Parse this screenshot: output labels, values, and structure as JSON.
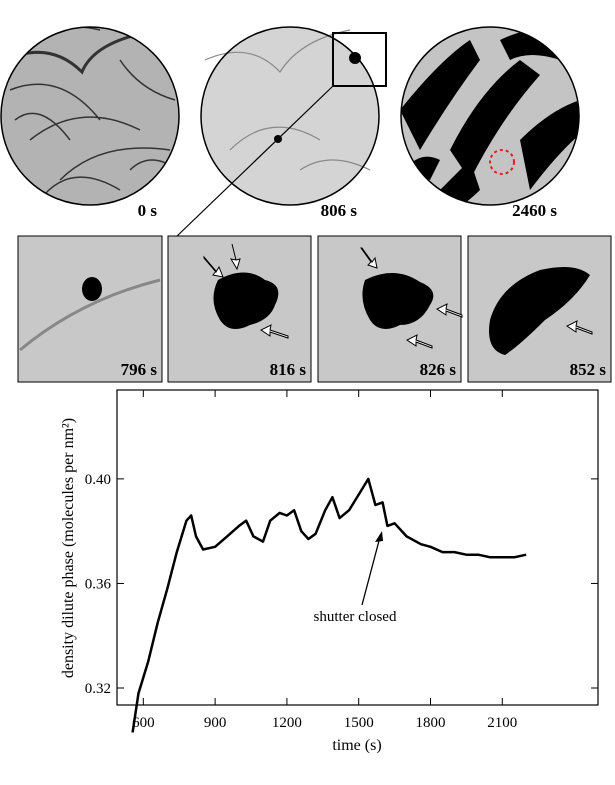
{
  "images": [
    {
      "label": "0 s"
    },
    {
      "label": "806 s"
    },
    {
      "label": "2460 s"
    },
    {
      "label": "796 s"
    },
    {
      "label": "816 s"
    },
    {
      "label": "826 s"
    },
    {
      "label": "852 s"
    }
  ],
  "chart_data": {
    "type": "line",
    "x_label": "time (s)",
    "y_label": "density dilute phase (molecules per nm²)",
    "annotation": "shutter closed",
    "color": "#000000",
    "x": [
      555,
      580,
      620,
      660,
      700,
      740,
      780,
      800,
      820,
      850,
      900,
      950,
      1000,
      1030,
      1060,
      1100,
      1130,
      1170,
      1200,
      1230,
      1260,
      1290,
      1320,
      1360,
      1390,
      1420,
      1460,
      1500,
      1540,
      1570,
      1600,
      1620,
      1650,
      1700,
      1760,
      1800,
      1850,
      1900,
      1950,
      2000,
      2050,
      2100,
      2150,
      2200
    ],
    "values": [
      0.303,
      0.318,
      0.33,
      0.345,
      0.358,
      0.372,
      0.384,
      0.386,
      0.378,
      0.373,
      0.374,
      0.378,
      0.382,
      0.384,
      0.378,
      0.376,
      0.384,
      0.387,
      0.386,
      0.388,
      0.38,
      0.377,
      0.379,
      0.388,
      0.393,
      0.385,
      0.388,
      0.394,
      0.4,
      0.39,
      0.391,
      0.382,
      0.383,
      0.378,
      0.375,
      0.374,
      0.372,
      0.372,
      0.371,
      0.371,
      0.37,
      0.37,
      0.37,
      0.371
    ],
    "xlim": [
      490,
      2500
    ],
    "xticks": [
      600,
      900,
      1200,
      1500,
      1800,
      2100
    ],
    "ylim": [
      0.3135,
      0.434
    ],
    "yticks": [
      0.32,
      0.36,
      {
        "value": 0.4,
        "label": "0.40"
      }
    ]
  }
}
